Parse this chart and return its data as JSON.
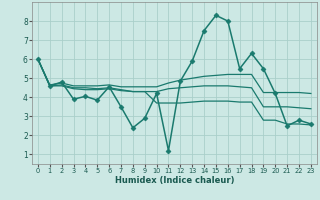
{
  "xlabel": "Humidex (Indice chaleur)",
  "bg_color": "#cce8e4",
  "grid_color": "#aacfca",
  "line_color": "#1a7a6e",
  "xlim": [
    -0.5,
    23.5
  ],
  "ylim": [
    0.5,
    9.0
  ],
  "yticks": [
    1,
    2,
    3,
    4,
    5,
    6,
    7,
    8
  ],
  "xticks": [
    0,
    1,
    2,
    3,
    4,
    5,
    6,
    7,
    8,
    9,
    10,
    11,
    12,
    13,
    14,
    15,
    16,
    17,
    18,
    19,
    20,
    21,
    22,
    23
  ],
  "lines": [
    {
      "x": [
        0,
        1,
        2,
        3,
        4,
        5,
        6,
        7,
        8,
        9,
        10,
        11,
        12,
        13,
        14,
        15,
        16,
        17,
        18,
        19,
        20,
        21,
        22,
        23
      ],
      "y": [
        6.0,
        4.6,
        4.8,
        3.9,
        4.05,
        3.85,
        4.55,
        3.5,
        2.4,
        2.9,
        4.2,
        1.2,
        4.85,
        5.9,
        7.5,
        8.3,
        8.0,
        5.5,
        6.3,
        5.5,
        4.2,
        2.5,
        2.8,
        2.6
      ],
      "marker": "D",
      "ms": 2.5,
      "lw": 1.1
    },
    {
      "x": [
        0,
        1,
        2,
        3,
        4,
        5,
        6,
        7,
        8,
        9,
        10,
        11,
        12,
        13,
        14,
        15,
        16,
        17,
        18,
        19,
        20,
        21,
        22,
        23
      ],
      "y": [
        6.0,
        4.65,
        4.75,
        4.6,
        4.6,
        4.6,
        4.65,
        4.55,
        4.55,
        4.55,
        4.55,
        4.75,
        4.9,
        5.0,
        5.1,
        5.15,
        5.2,
        5.2,
        5.2,
        4.25,
        4.25,
        4.25,
        4.25,
        4.2
      ],
      "marker": null,
      "ms": 0,
      "lw": 0.9
    },
    {
      "x": [
        0,
        1,
        2,
        3,
        4,
        5,
        6,
        7,
        8,
        9,
        10,
        11,
        12,
        13,
        14,
        15,
        16,
        17,
        18,
        19,
        20,
        21,
        22,
        23
      ],
      "y": [
        6.0,
        4.6,
        4.65,
        4.5,
        4.5,
        4.45,
        4.5,
        4.4,
        4.3,
        4.3,
        4.3,
        4.45,
        4.5,
        4.55,
        4.6,
        4.6,
        4.6,
        4.55,
        4.5,
        3.5,
        3.5,
        3.5,
        3.45,
        3.4
      ],
      "marker": null,
      "ms": 0,
      "lw": 0.9
    },
    {
      "x": [
        0,
        1,
        2,
        3,
        4,
        5,
        6,
        7,
        8,
        9,
        10,
        11,
        12,
        13,
        14,
        15,
        16,
        17,
        18,
        19,
        20,
        21,
        22,
        23
      ],
      "y": [
        6.0,
        4.6,
        4.6,
        4.45,
        4.4,
        4.4,
        4.45,
        4.35,
        4.3,
        4.3,
        3.7,
        3.7,
        3.7,
        3.75,
        3.8,
        3.8,
        3.8,
        3.75,
        3.75,
        2.8,
        2.8,
        2.6,
        2.6,
        2.55
      ],
      "marker": null,
      "ms": 0,
      "lw": 0.9
    }
  ]
}
